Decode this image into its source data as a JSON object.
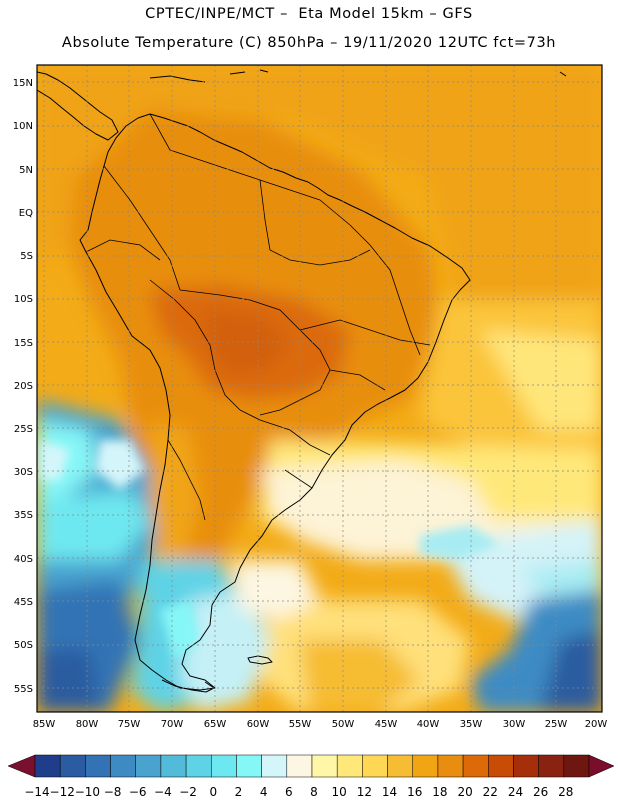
{
  "header": {
    "title_line1": "CPTEC/INPE/MCT –  Eta Model 15km – GFS",
    "title_line2": "Absolute Temperature (C) 850hPa – 19/11/2020 12UTC fct=73h"
  },
  "map": {
    "lat_labels": [
      "15N",
      "10N",
      "5N",
      "EQ",
      "5S",
      "10S",
      "15S",
      "20S",
      "25S",
      "30S",
      "35S",
      "40S",
      "45S",
      "50S",
      "55S"
    ],
    "lon_labels": [
      "85W",
      "80W",
      "75W",
      "70W",
      "65W",
      "60W",
      "55W",
      "50W",
      "45W",
      "40W",
      "35W",
      "30W",
      "25W",
      "20W"
    ],
    "lat_values": [
      15,
      10,
      5,
      0,
      -5,
      -10,
      -15,
      -20,
      -25,
      -30,
      -35,
      -40,
      -45,
      -50,
      -55
    ],
    "lon_values": [
      -85,
      -80,
      -75,
      -70,
      -65,
      -60,
      -55,
      -50,
      -45,
      -40,
      -35,
      -30,
      -25,
      -20
    ]
  },
  "colorbar": {
    "labels": [
      "-14",
      "-12",
      "-10",
      "-8",
      "-6",
      "-4",
      "-2",
      "0",
      "2",
      "4",
      "6",
      "8",
      "10",
      "12",
      "14",
      "16",
      "18",
      "20",
      "22",
      "24",
      "26",
      "28"
    ],
    "colors": [
      "#7a1030",
      "#1f3d8a",
      "#2b5ba0",
      "#3373b5",
      "#3e8bc4",
      "#4aa3cf",
      "#52bbd9",
      "#5ed3e6",
      "#6ee8f0",
      "#86f7f7",
      "#d4f6fa",
      "#fdf6e2",
      "#fff7a8",
      "#ffe87a",
      "#fed854",
      "#f6bc33",
      "#f1a515",
      "#e88d10",
      "#dc6a09",
      "#c84b06",
      "#a52f0a",
      "#8a2212",
      "#6d1710",
      "#7a0d2a"
    ]
  }
}
